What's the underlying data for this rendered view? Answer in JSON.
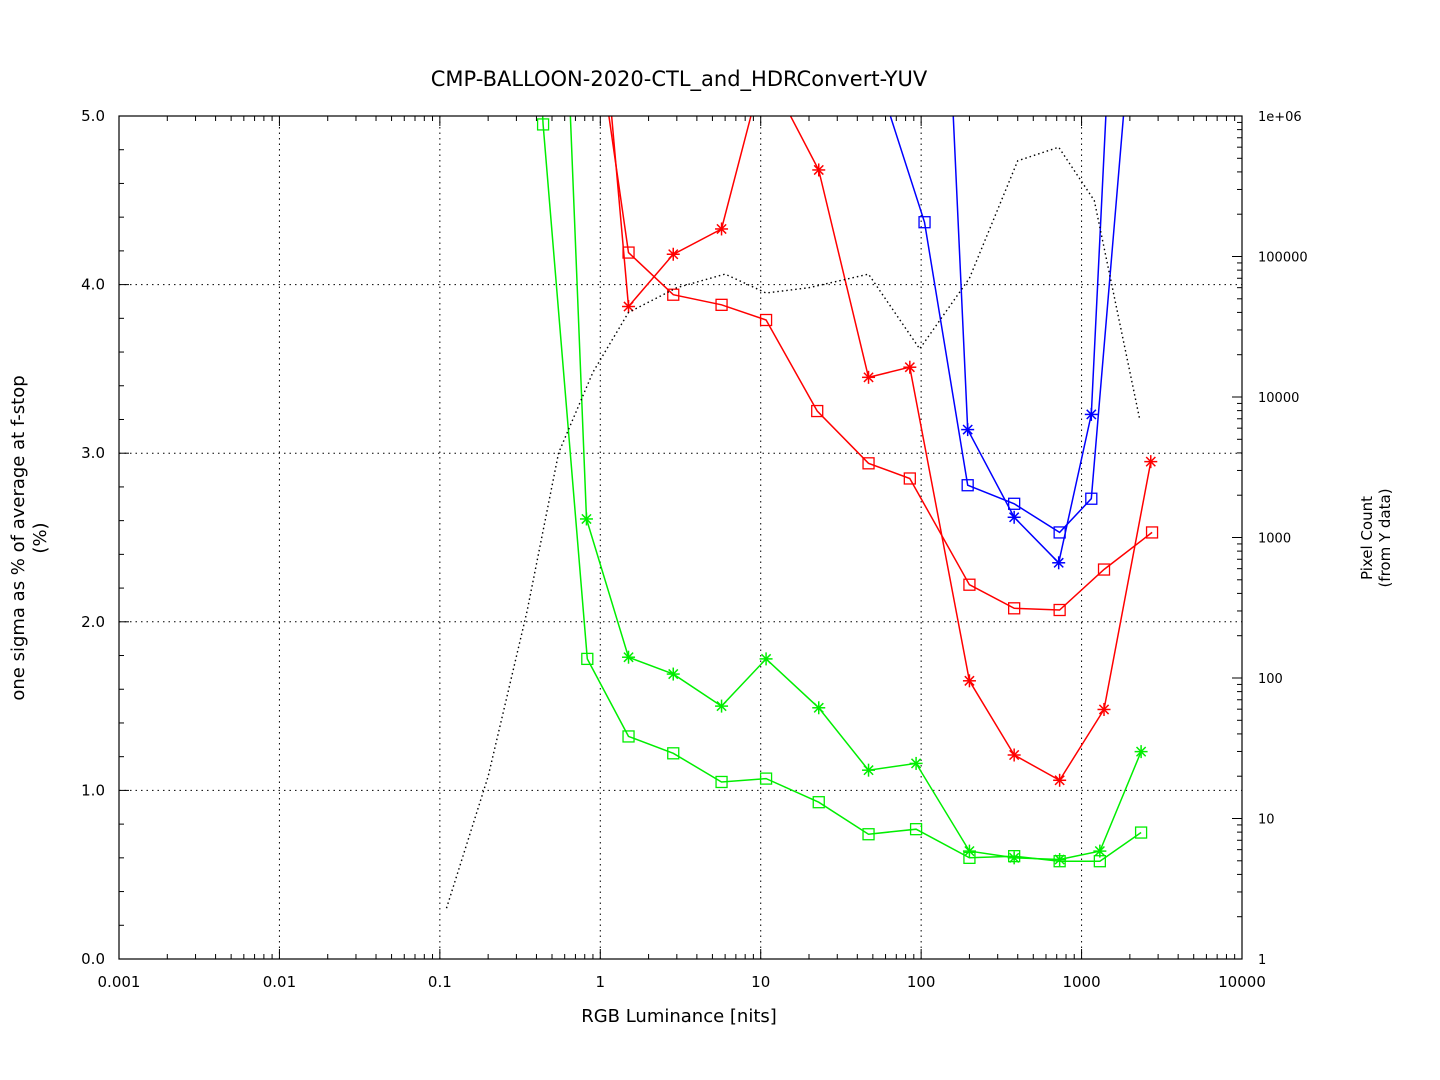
{
  "chart_data": {
    "type": "line",
    "title": "CMP-BALLOON-2020-CTL_and_HDRConvert-YUV",
    "xlabel": "RGB Luminance [nits]",
    "ylabel": "one sigma as % of average at f-stop",
    "ylabel_unit": "(%)",
    "y2label": "Pixel Count",
    "y2label_sub": "(from Y data)",
    "x_scale": "log",
    "xlim": [
      0.001,
      10000
    ],
    "ylim": [
      0,
      5
    ],
    "y2_scale": "log",
    "y2lim": [
      1,
      1000000
    ],
    "grid": true,
    "x_ticks": [
      "0.001",
      "0.01",
      "0.1",
      "1",
      "10",
      "100",
      "1000",
      "10000"
    ],
    "y_ticks": [
      "0.0",
      "1.0",
      "2.0",
      "3.0",
      "4.0",
      "5.0"
    ],
    "y2_ticks": [
      "1",
      "10",
      "100",
      "1000",
      "10000",
      "100000",
      "1e+06"
    ],
    "series": [
      {
        "color": "#ff0000",
        "marker": "square",
        "axis": "y",
        "points": [
          [
            0.8,
            6.0
          ],
          [
            1.5,
            4.19
          ],
          [
            2.85,
            3.94
          ],
          [
            5.7,
            3.88
          ],
          [
            10.8,
            3.79
          ],
          [
            22.5,
            3.25
          ],
          [
            47,
            2.94
          ],
          [
            85,
            2.85
          ],
          [
            200,
            2.22
          ],
          [
            380,
            2.08
          ],
          [
            730,
            2.07
          ],
          [
            1380,
            2.31
          ],
          [
            2750,
            2.53
          ]
        ]
      },
      {
        "color": "#ff0000",
        "marker": "star",
        "axis": "y",
        "points": [
          [
            0.95,
            6.0
          ],
          [
            1.5,
            3.87
          ],
          [
            2.85,
            4.18
          ],
          [
            5.7,
            4.33
          ],
          [
            10.5,
            5.3
          ],
          [
            23,
            4.68
          ],
          [
            47,
            3.45
          ],
          [
            85,
            3.51
          ],
          [
            200,
            1.65
          ],
          [
            380,
            1.21
          ],
          [
            730,
            1.06
          ],
          [
            1380,
            1.48
          ],
          [
            2700,
            2.95
          ]
        ]
      },
      {
        "color": "#0000ff",
        "marker": "square",
        "axis": "y",
        "points": [
          [
            55,
            5.2
          ],
          [
            105,
            4.37
          ],
          [
            195,
            2.81
          ],
          [
            380,
            2.7
          ],
          [
            730,
            2.53
          ],
          [
            1150,
            2.73
          ],
          [
            1900,
            5.2
          ]
        ]
      },
      {
        "color": "#0000ff",
        "marker": "star",
        "axis": "y",
        "points": [
          [
            155,
            5.2
          ],
          [
            195,
            3.14
          ],
          [
            380,
            2.62
          ],
          [
            720,
            2.35
          ],
          [
            1150,
            3.23
          ],
          [
            1450,
            5.2
          ]
        ]
      },
      {
        "color": "#00ee00",
        "marker": "square",
        "axis": "y",
        "points": [
          [
            0.4,
            5.7
          ],
          [
            0.44,
            4.95
          ],
          [
            0.83,
            1.78
          ],
          [
            1.5,
            1.32
          ],
          [
            2.85,
            1.22
          ],
          [
            5.7,
            1.05
          ],
          [
            10.8,
            1.07
          ],
          [
            23,
            0.93
          ],
          [
            47,
            0.74
          ],
          [
            93,
            0.77
          ],
          [
            200,
            0.6
          ],
          [
            380,
            0.61
          ],
          [
            730,
            0.58
          ],
          [
            1300,
            0.58
          ],
          [
            2350,
            0.75
          ]
        ]
      },
      {
        "color": "#00ee00",
        "marker": "star",
        "axis": "y",
        "points": [
          [
            0.62,
            5.5
          ],
          [
            0.82,
            2.61
          ],
          [
            1.5,
            1.79
          ],
          [
            2.85,
            1.69
          ],
          [
            5.7,
            1.5
          ],
          [
            10.8,
            1.78
          ],
          [
            23,
            1.49
          ],
          [
            47,
            1.12
          ],
          [
            93,
            1.16
          ],
          [
            200,
            0.64
          ],
          [
            380,
            0.6
          ],
          [
            730,
            0.59
          ],
          [
            1300,
            0.64
          ],
          [
            2350,
            1.23
          ]
        ]
      },
      {
        "color": "#000000",
        "marker": "none",
        "style": "dotted",
        "axis": "y2",
        "points": [
          [
            0.11,
            2.3
          ],
          [
            0.2,
            20
          ],
          [
            0.35,
            300
          ],
          [
            0.55,
            4000
          ],
          [
            0.9,
            15000
          ],
          [
            1.5,
            40000
          ],
          [
            3,
            60000
          ],
          [
            6,
            75000
          ],
          [
            10.8,
            55000
          ],
          [
            20,
            60000
          ],
          [
            47,
            75000
          ],
          [
            98,
            22000
          ],
          [
            200,
            70000
          ],
          [
            400,
            480000
          ],
          [
            720,
            600000
          ],
          [
            1200,
            250000
          ],
          [
            2300,
            7000
          ]
        ]
      }
    ]
  }
}
